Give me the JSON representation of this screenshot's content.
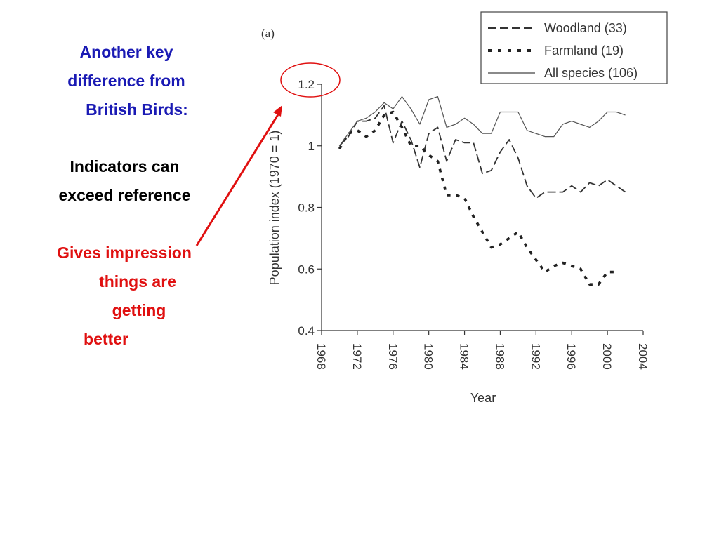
{
  "slide": {
    "heading_lines": [
      "Another key",
      "difference from",
      "British Birds:"
    ],
    "indicator_lines": [
      "Indicators can",
      "exceed reference"
    ],
    "impression_lines": [
      "Gives impression",
      "things are",
      "getting",
      "better"
    ],
    "colors": {
      "heading": "#1a1ab4",
      "indicator": "#000000",
      "impression": "#e01010",
      "callout": "#e01010"
    }
  },
  "chart_data": {
    "type": "line",
    "panel_label": "(a)",
    "xlabel": "Year",
    "ylabel": "Population index (1970 = 1)",
    "xlim": [
      1968,
      2004
    ],
    "ylim": [
      0.4,
      1.2
    ],
    "x_ticks": [
      "1968",
      "1972",
      "1976",
      "1980",
      "1984",
      "1988",
      "1992",
      "1996",
      "2000",
      "2004"
    ],
    "y_ticks": [
      "0.4",
      "0.6",
      "0.8",
      "1",
      "1.2"
    ],
    "grid": false,
    "legend_position": "top-right",
    "series": [
      {
        "name": "Woodland (33)",
        "style": "dashed",
        "x": [
          1970,
          1971,
          1972,
          1973,
          1974,
          1975,
          1976,
          1977,
          1978,
          1979,
          1980,
          1981,
          1982,
          1983,
          1984,
          1985,
          1986,
          1987,
          1988,
          1989,
          1990,
          1991,
          1992,
          1993,
          1994,
          1995,
          1996,
          1997,
          1998,
          1999,
          2000,
          2001,
          2002
        ],
        "values": [
          1.0,
          1.03,
          1.08,
          1.08,
          1.09,
          1.13,
          1.01,
          1.08,
          1.02,
          0.93,
          1.04,
          1.06,
          0.95,
          1.02,
          1.01,
          1.01,
          0.91,
          0.92,
          0.98,
          1.02,
          0.96,
          0.87,
          0.83,
          0.85,
          0.85,
          0.85,
          0.87,
          0.85,
          0.88,
          0.87,
          0.89,
          0.87,
          0.85
        ]
      },
      {
        "name": "Farmland (19)",
        "style": "dotted",
        "x": [
          1970,
          1971,
          1972,
          1973,
          1974,
          1975,
          1976,
          1977,
          1978,
          1979,
          1980,
          1981,
          1982,
          1983,
          1984,
          1985,
          1986,
          1987,
          1988,
          1989,
          1990,
          1991,
          1992,
          1993,
          1994,
          1995,
          1996,
          1997,
          1998,
          1999,
          2000,
          2001
        ],
        "values": [
          0.99,
          1.04,
          1.05,
          1.03,
          1.05,
          1.1,
          1.11,
          1.06,
          1.0,
          1.0,
          0.97,
          0.95,
          0.84,
          0.84,
          0.83,
          0.77,
          0.72,
          0.67,
          0.68,
          0.7,
          0.72,
          0.67,
          0.63,
          0.59,
          0.61,
          0.62,
          0.61,
          0.6,
          0.55,
          0.55,
          0.59,
          0.59
        ]
      },
      {
        "name": "All species (106)",
        "style": "solid",
        "x": [
          1970,
          1971,
          1972,
          1973,
          1974,
          1975,
          1976,
          1977,
          1978,
          1979,
          1980,
          1981,
          1982,
          1983,
          1984,
          1985,
          1986,
          1987,
          1988,
          1989,
          1990,
          1991,
          1992,
          1993,
          1994,
          1995,
          1996,
          1997,
          1998,
          1999,
          2000,
          2001,
          2002
        ],
        "values": [
          1.0,
          1.04,
          1.08,
          1.09,
          1.11,
          1.14,
          1.12,
          1.16,
          1.12,
          1.07,
          1.15,
          1.16,
          1.06,
          1.07,
          1.09,
          1.07,
          1.04,
          1.04,
          1.11,
          1.11,
          1.11,
          1.05,
          1.04,
          1.03,
          1.03,
          1.07,
          1.08,
          1.07,
          1.06,
          1.08,
          1.11,
          1.11,
          1.1
        ]
      }
    ]
  }
}
